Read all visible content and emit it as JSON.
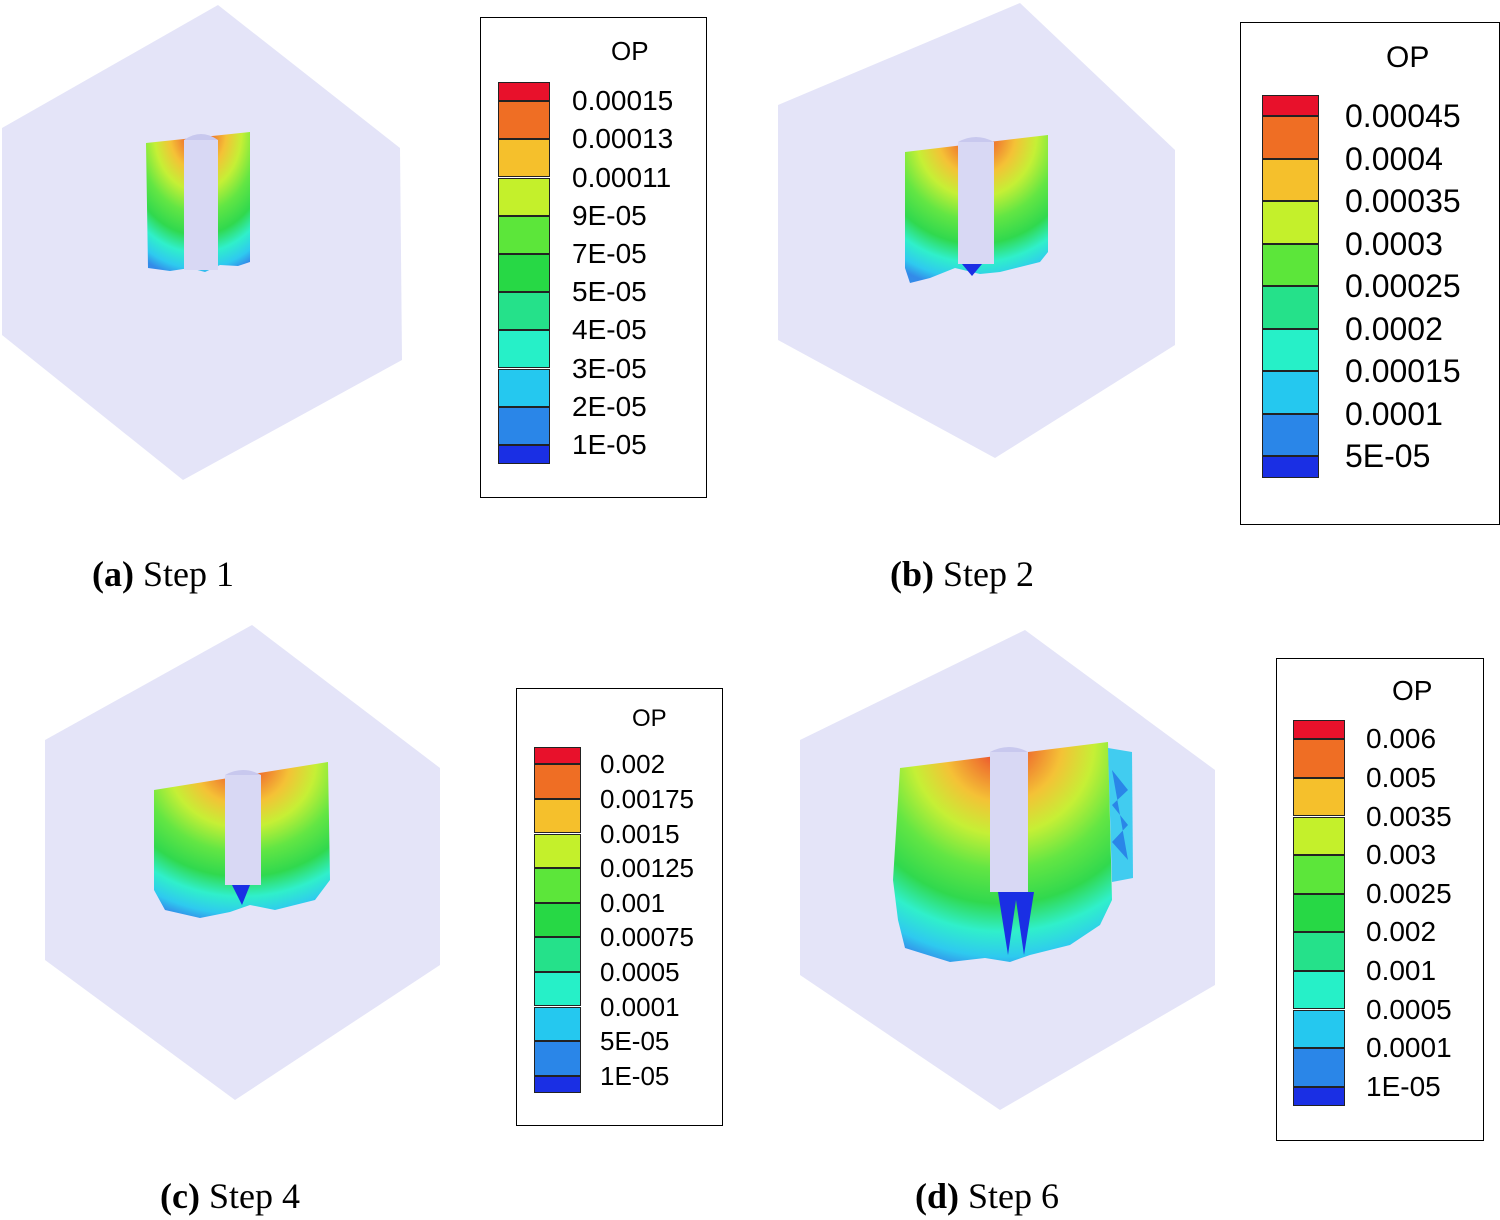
{
  "panels": [
    {
      "id": "a",
      "caption_letter": "(a)",
      "caption_text": "Step 1",
      "legend": {
        "title": "OP",
        "entries": [
          "0.00015",
          "0.00013",
          "0.00011",
          "9E-05",
          "7E-05",
          "5E-05",
          "4E-05",
          "3E-05",
          "2E-05",
          "1E-05"
        ]
      }
    },
    {
      "id": "b",
      "caption_letter": "(b)",
      "caption_text": "Step 2",
      "legend": {
        "title": "OP",
        "entries": [
          "0.00045",
          "0.0004",
          "0.00035",
          "0.0003",
          "0.00025",
          "0.0002",
          "0.00015",
          "0.0001",
          "5E-05"
        ]
      }
    },
    {
      "id": "c",
      "caption_letter": "(c)",
      "caption_text": "Step 4",
      "legend": {
        "title": "OP",
        "entries": [
          "0.002",
          "0.00175",
          "0.0015",
          "0.00125",
          "0.001",
          "0.00075",
          "0.0005",
          "0.0001",
          "5E-05",
          "1E-05"
        ]
      }
    },
    {
      "id": "d",
      "caption_letter": "(d)",
      "caption_text": "Step 6",
      "legend": {
        "title": "OP",
        "entries": [
          "0.006",
          "0.005",
          "0.0035",
          "0.003",
          "0.0025",
          "0.002",
          "0.001",
          "0.0005",
          "0.0001",
          "1E-05"
        ]
      }
    }
  ],
  "colors": {
    "hexagon_fill": "#e4e4f8",
    "borehole_fill": "#d8d8f4",
    "scale": [
      "#e8112b",
      "#ef6e24",
      "#f5c02c",
      "#c4f02b",
      "#5ce63a",
      "#27d845",
      "#25e18a",
      "#26f0c8",
      "#25c8ef",
      "#2a86e8",
      "#1a2fe4"
    ]
  }
}
